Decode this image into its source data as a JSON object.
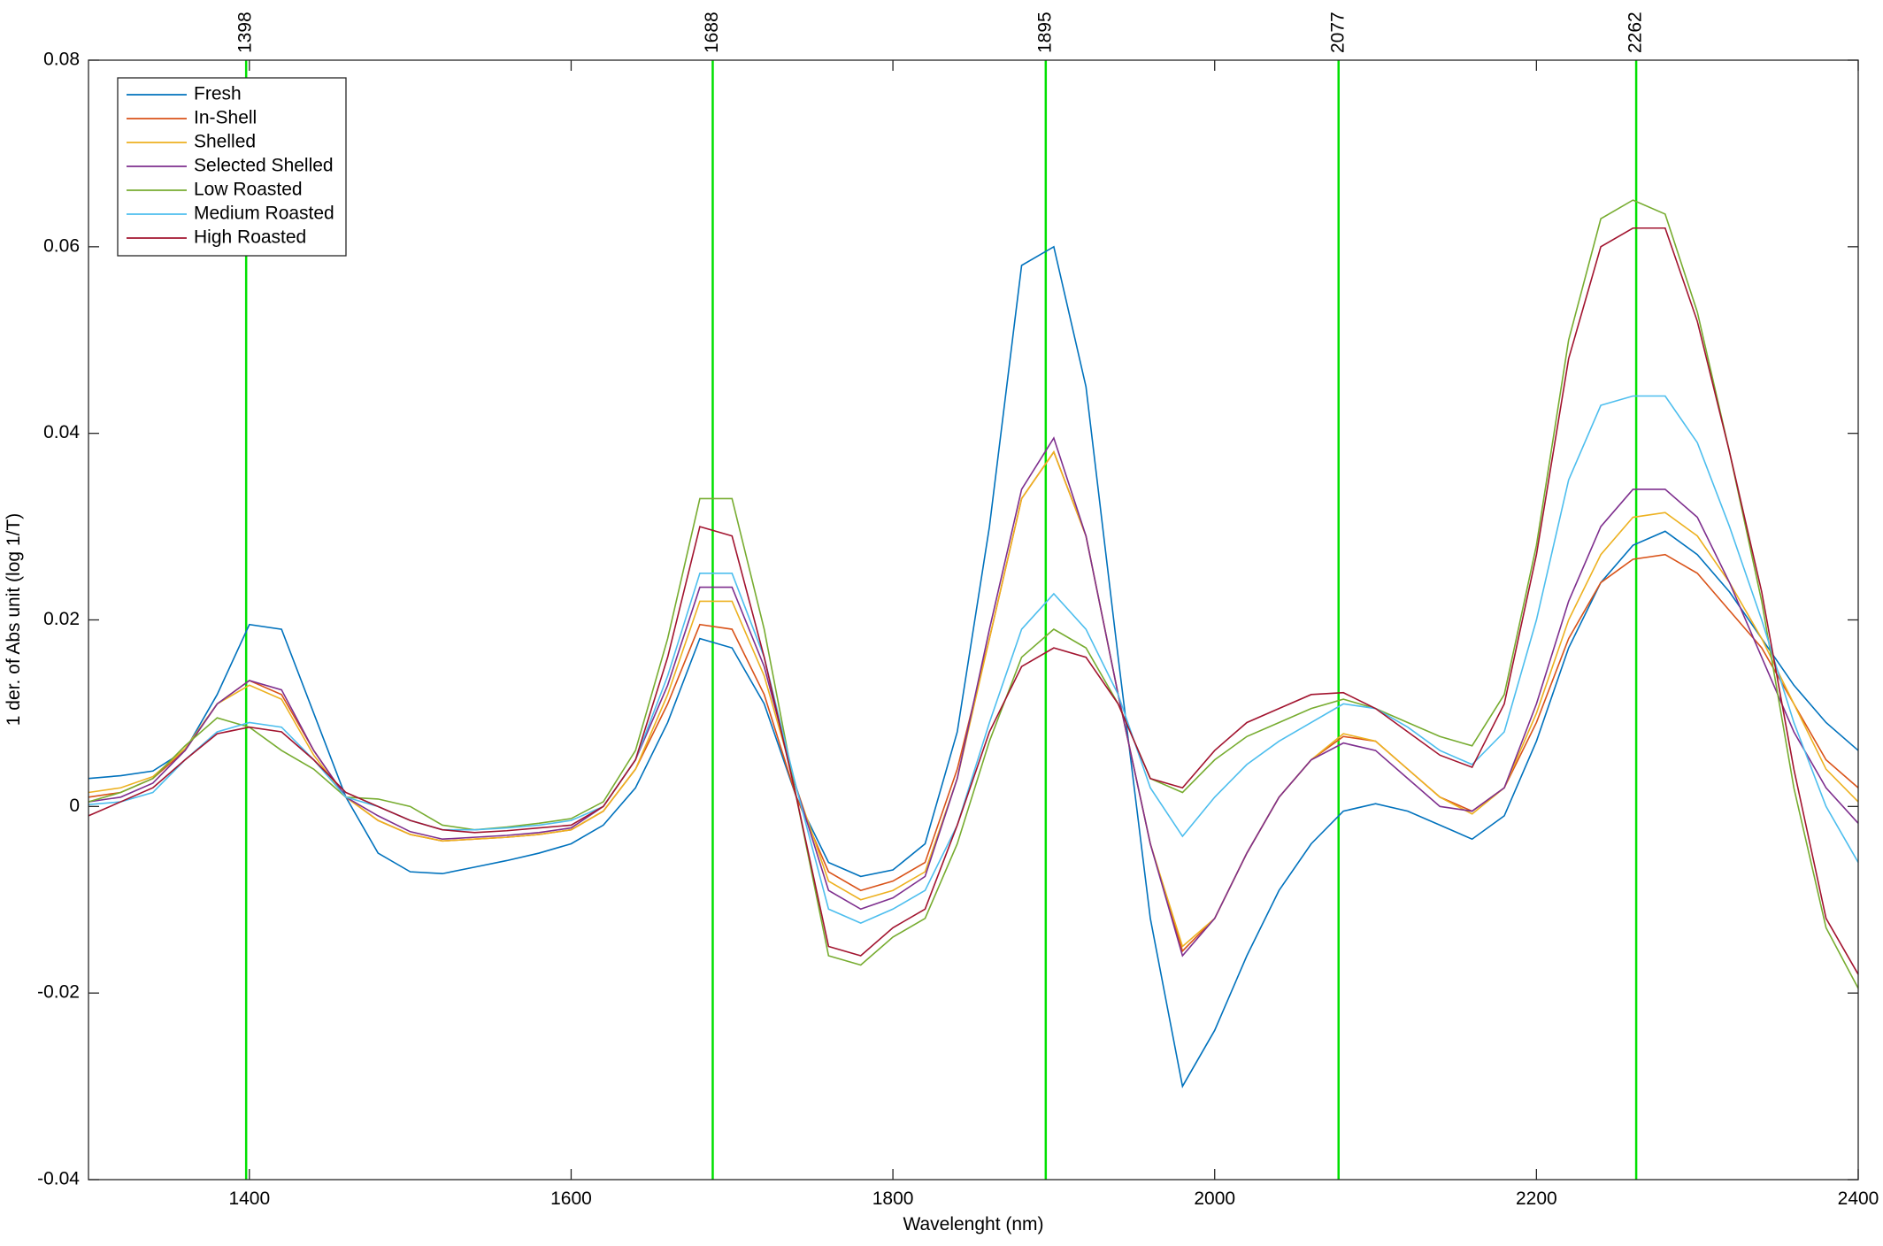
{
  "chart_data": {
    "type": "line",
    "x_label": "Wavelenght (nm)",
    "y_label": "1 der. of Abs unit (log 1/T)",
    "x": [
      1300,
      1320,
      1340,
      1360,
      1380,
      1400,
      1420,
      1440,
      1460,
      1480,
      1500,
      1520,
      1540,
      1560,
      1580,
      1600,
      1620,
      1640,
      1660,
      1680,
      1700,
      1720,
      1740,
      1760,
      1780,
      1800,
      1820,
      1840,
      1860,
      1880,
      1900,
      1920,
      1940,
      1960,
      1980,
      2000,
      2020,
      2040,
      2060,
      2080,
      2100,
      2120,
      2140,
      2160,
      2180,
      2200,
      2220,
      2240,
      2260,
      2280,
      2300,
      2320,
      2340,
      2360,
      2380,
      2400
    ],
    "series": [
      {
        "name": "Fresh",
        "color": "#0072bd",
        "values": [
          0.003,
          0.0033,
          0.0038,
          0.006,
          0.012,
          0.0195,
          0.019,
          0.01,
          0.001,
          -0.005,
          -0.007,
          -0.0072,
          -0.0065,
          -0.0058,
          -0.005,
          -0.004,
          -0.002,
          0.002,
          0.009,
          0.018,
          0.017,
          0.011,
          0.001,
          -0.006,
          -0.0075,
          -0.0068,
          -0.004,
          0.008,
          0.03,
          0.058,
          0.06,
          0.045,
          0.016,
          -0.012,
          -0.03,
          -0.024,
          -0.016,
          -0.009,
          -0.004,
          -0.0005,
          0.0003,
          -0.0005,
          -0.002,
          -0.0035,
          -0.001,
          0.007,
          0.017,
          0.024,
          0.028,
          0.0295,
          0.027,
          0.023,
          0.018,
          0.013,
          0.009,
          0.006
        ]
      },
      {
        "name": "In-Shell",
        "color": "#d95319",
        "values": [
          0.001,
          0.0015,
          0.003,
          0.006,
          0.011,
          0.0135,
          0.012,
          0.006,
          0.001,
          -0.0015,
          -0.003,
          -0.0037,
          -0.0035,
          -0.0033,
          -0.003,
          -0.0025,
          -0.0005,
          0.004,
          0.011,
          0.0195,
          0.019,
          0.012,
          0.001,
          -0.007,
          -0.009,
          -0.008,
          -0.006,
          0.004,
          0.018,
          0.033,
          0.038,
          0.029,
          0.012,
          -0.004,
          -0.0155,
          -0.012,
          -0.005,
          0.001,
          0.005,
          0.0075,
          0.007,
          0.004,
          0.001,
          -0.0005,
          0.002,
          0.009,
          0.018,
          0.024,
          0.0265,
          0.027,
          0.025,
          0.021,
          0.017,
          0.011,
          0.005,
          0.002
        ]
      },
      {
        "name": "Shelled",
        "color": "#edb120",
        "values": [
          0.0015,
          0.002,
          0.0032,
          0.0062,
          0.011,
          0.013,
          0.0115,
          0.0055,
          0.001,
          -0.0015,
          -0.003,
          -0.0037,
          -0.0035,
          -0.0033,
          -0.003,
          -0.0025,
          -0.0005,
          0.004,
          0.012,
          0.022,
          0.022,
          0.014,
          0.002,
          -0.008,
          -0.01,
          -0.009,
          -0.007,
          0.003,
          0.018,
          0.033,
          0.038,
          0.029,
          0.012,
          -0.004,
          -0.015,
          -0.012,
          -0.005,
          0.001,
          0.005,
          0.0078,
          0.007,
          0.004,
          0.001,
          -0.0008,
          0.002,
          0.01,
          0.02,
          0.027,
          0.031,
          0.0315,
          0.029,
          0.024,
          0.018,
          0.011,
          0.004,
          0.0005
        ]
      },
      {
        "name": "Selected Shelled",
        "color": "#7e2f8e",
        "values": [
          0.0005,
          0.001,
          0.0025,
          0.006,
          0.011,
          0.0135,
          0.0125,
          0.006,
          0.001,
          -0.001,
          -0.0027,
          -0.0035,
          -0.0033,
          -0.0031,
          -0.0028,
          -0.0023,
          0,
          0.005,
          0.013,
          0.0235,
          0.0235,
          0.015,
          0.002,
          -0.009,
          -0.011,
          -0.0098,
          -0.0075,
          0.003,
          0.019,
          0.034,
          0.0395,
          0.029,
          0.012,
          -0.004,
          -0.016,
          -0.012,
          -0.005,
          0.001,
          0.005,
          0.0068,
          0.006,
          0.003,
          0,
          -0.0005,
          0.002,
          0.011,
          0.022,
          0.03,
          0.034,
          0.034,
          0.031,
          0.024,
          0.016,
          0.008,
          0.002,
          -0.0018
        ]
      },
      {
        "name": "Low Roasted",
        "color": "#77ac30",
        "values": [
          0.0005,
          0.0015,
          0.003,
          0.0065,
          0.0095,
          0.0085,
          0.006,
          0.004,
          0.001,
          0.0008,
          0,
          -0.002,
          -0.0025,
          -0.0022,
          -0.0018,
          -0.0013,
          0.0005,
          0.006,
          0.018,
          0.033,
          0.033,
          0.019,
          0.001,
          -0.016,
          -0.017,
          -0.014,
          -0.012,
          -0.004,
          0.007,
          0.016,
          0.019,
          0.017,
          0.011,
          0.003,
          0.0015,
          0.005,
          0.0075,
          0.009,
          0.0105,
          0.0115,
          0.0105,
          0.009,
          0.0075,
          0.0065,
          0.012,
          0.028,
          0.05,
          0.063,
          0.065,
          0.0635,
          0.053,
          0.038,
          0.022,
          0.002,
          -0.013,
          -0.0195
        ]
      },
      {
        "name": "Medium Roasted",
        "color": "#4dbeee",
        "values": [
          0.0002,
          0.0005,
          0.0015,
          0.005,
          0.008,
          0.009,
          0.0085,
          0.005,
          0.001,
          0,
          -0.0015,
          -0.0025,
          -0.0025,
          -0.0023,
          -0.002,
          -0.0015,
          0,
          0.005,
          0.014,
          0.025,
          0.025,
          0.016,
          0.002,
          -0.011,
          -0.0125,
          -0.011,
          -0.009,
          -0.002,
          0.009,
          0.019,
          0.0228,
          0.019,
          0.012,
          0.002,
          -0.0032,
          0.001,
          0.0045,
          0.007,
          0.009,
          0.011,
          0.0105,
          0.0085,
          0.006,
          0.0045,
          0.008,
          0.02,
          0.035,
          0.043,
          0.044,
          0.044,
          0.039,
          0.03,
          0.02,
          0.009,
          0,
          -0.006
        ]
      },
      {
        "name": "High Roasted",
        "color": "#a2142f",
        "values": [
          -0.001,
          0.0005,
          0.002,
          0.005,
          0.0078,
          0.0085,
          0.008,
          0.005,
          0.0015,
          0,
          -0.0015,
          -0.0025,
          -0.0028,
          -0.0026,
          -0.0023,
          -0.002,
          0,
          0.005,
          0.016,
          0.03,
          0.029,
          0.016,
          0.001,
          -0.015,
          -0.016,
          -0.013,
          -0.011,
          -0.002,
          0.008,
          0.015,
          0.017,
          0.016,
          0.011,
          0.003,
          0.002,
          0.006,
          0.009,
          0.0105,
          0.012,
          0.0122,
          0.0105,
          0.008,
          0.0055,
          0.0042,
          0.011,
          0.027,
          0.048,
          0.06,
          0.062,
          0.062,
          0.052,
          0.038,
          0.023,
          0.004,
          -0.012,
          -0.018
        ]
      }
    ],
    "xlim": [
      1300,
      2400
    ],
    "xticks": [
      1400,
      1600,
      1800,
      2000,
      2200,
      2400
    ],
    "ylim": [
      -0.04,
      0.08
    ],
    "yticks": [
      -0.04,
      -0.02,
      0,
      0.02,
      0.04,
      0.06,
      0.08
    ],
    "vlines": [
      1398,
      1688,
      1895,
      2077,
      2262
    ],
    "vline_color": "#00e000",
    "legend": "upper left",
    "grid": false
  }
}
